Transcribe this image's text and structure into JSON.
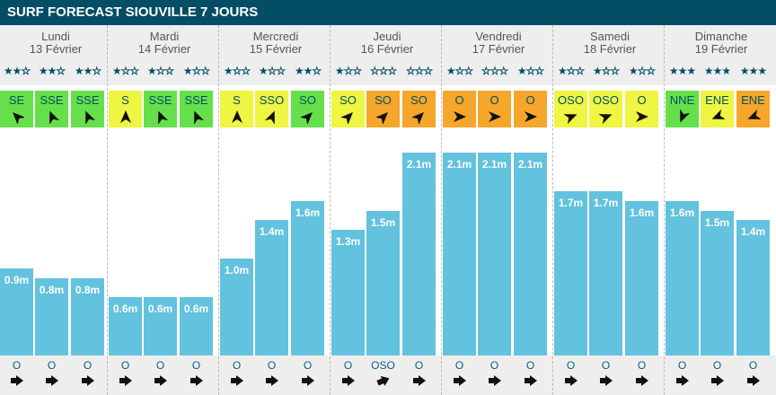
{
  "title": "SURF FORECAST SIOUVILLE 7 JOURS",
  "colors": {
    "header": "#034e65",
    "bar": "#63c2de",
    "green": "#66e04a",
    "yellow": "#eef542",
    "orange": "#f5a62b"
  },
  "days": [
    {
      "name": "Lundi",
      "date": "13 Février",
      "slots": [
        {
          "stars": 2,
          "wind": "SE",
          "wind_color": "green",
          "height": "0.9m",
          "h": 0.9,
          "swell": "O"
        },
        {
          "stars": 2,
          "wind": "SSE",
          "wind_color": "green",
          "height": "0.8m",
          "h": 0.8,
          "swell": "O"
        },
        {
          "stars": 2,
          "wind": "SSE",
          "wind_color": "green",
          "height": "0.8m",
          "h": 0.8,
          "swell": "O"
        }
      ]
    },
    {
      "name": "Mardi",
      "date": "14 Février",
      "slots": [
        {
          "stars": 1,
          "wind": "S",
          "wind_color": "yellow",
          "height": "0.6m",
          "h": 0.6,
          "swell": "O"
        },
        {
          "stars": 1,
          "wind": "SSE",
          "wind_color": "green",
          "height": "0.6m",
          "h": 0.6,
          "swell": "O"
        },
        {
          "stars": 1,
          "wind": "SSE",
          "wind_color": "green",
          "height": "0.6m",
          "h": 0.6,
          "swell": "O"
        }
      ]
    },
    {
      "name": "Mercredi",
      "date": "15 Février",
      "slots": [
        {
          "stars": 1,
          "wind": "S",
          "wind_color": "yellow",
          "height": "1.0m",
          "h": 1.0,
          "swell": "O"
        },
        {
          "stars": 1,
          "wind": "SSO",
          "wind_color": "yellow",
          "height": "1.4m",
          "h": 1.4,
          "swell": "O"
        },
        {
          "stars": 2,
          "wind": "SO",
          "wind_color": "green",
          "height": "1.6m",
          "h": 1.6,
          "swell": "O"
        }
      ]
    },
    {
      "name": "Jeudi",
      "date": "16 Février",
      "slots": [
        {
          "stars": 1,
          "wind": "SO",
          "wind_color": "yellow",
          "height": "1.3m",
          "h": 1.3,
          "swell": "O"
        },
        {
          "stars": 0,
          "wind": "SO",
          "wind_color": "orange",
          "height": "1.5m",
          "h": 1.5,
          "swell": "OSO"
        },
        {
          "stars": 0,
          "wind": "SO",
          "wind_color": "orange",
          "height": "2.1m",
          "h": 2.1,
          "swell": "O"
        }
      ]
    },
    {
      "name": "Vendredi",
      "date": "17 Février",
      "slots": [
        {
          "stars": 1,
          "wind": "O",
          "wind_color": "orange",
          "height": "2.1m",
          "h": 2.1,
          "swell": "O"
        },
        {
          "stars": 0,
          "wind": "O",
          "wind_color": "orange",
          "height": "2.1m",
          "h": 2.1,
          "swell": "O"
        },
        {
          "stars": 1,
          "wind": "O",
          "wind_color": "orange",
          "height": "2.1m",
          "h": 2.1,
          "swell": "O"
        }
      ]
    },
    {
      "name": "Samedi",
      "date": "18 Février",
      "slots": [
        {
          "stars": 1,
          "wind": "OSO",
          "wind_color": "yellow",
          "height": "1.7m",
          "h": 1.7,
          "swell": "O"
        },
        {
          "stars": 1,
          "wind": "OSO",
          "wind_color": "yellow",
          "height": "1.7m",
          "h": 1.7,
          "swell": "O"
        },
        {
          "stars": 1,
          "wind": "O",
          "wind_color": "yellow",
          "height": "1.6m",
          "h": 1.6,
          "swell": "O"
        }
      ]
    },
    {
      "name": "Dimanche",
      "date": "19 Février",
      "slots": [
        {
          "stars": 3,
          "wind": "NNE",
          "wind_color": "green",
          "height": "1.6m",
          "h": 1.6,
          "swell": "O"
        },
        {
          "stars": 3,
          "wind": "ENE",
          "wind_color": "yellow",
          "height": "1.5m",
          "h": 1.5,
          "swell": "O"
        },
        {
          "stars": 3,
          "wind": "ENE",
          "wind_color": "orange",
          "height": "1.4m",
          "h": 1.4,
          "swell": "O"
        }
      ]
    }
  ]
}
